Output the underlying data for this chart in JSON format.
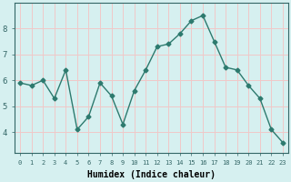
{
  "x": [
    0,
    1,
    2,
    3,
    4,
    5,
    6,
    7,
    8,
    9,
    10,
    11,
    12,
    13,
    14,
    15,
    16,
    17,
    18,
    19,
    20,
    21,
    22,
    23
  ],
  "y": [
    5.9,
    5.8,
    6.0,
    5.3,
    6.4,
    4.1,
    4.6,
    5.9,
    5.4,
    4.3,
    5.6,
    6.4,
    7.3,
    7.4,
    7.8,
    8.3,
    8.5,
    7.5,
    6.5,
    6.4,
    5.8,
    5.3,
    4.1,
    3.6
  ],
  "line_color": "#2d7a6e",
  "marker": "D",
  "marker_size": 2.5,
  "line_width": 1.0,
  "xlabel": "Humidex (Indice chaleur)",
  "xlabel_fontsize": 7,
  "bg_color": "#d6f0f0",
  "grid_color": "#f0c8c8",
  "tick_labels": [
    "0",
    "1",
    "2",
    "3",
    "4",
    "5",
    "6",
    "7",
    "8",
    "9",
    "10",
    "11",
    "12",
    "13",
    "14",
    "15",
    "16",
    "17",
    "18",
    "19",
    "20",
    "21",
    "22",
    "23"
  ],
  "yticks": [
    4,
    5,
    6,
    7,
    8
  ],
  "ylim": [
    3.2,
    9.0
  ],
  "xlim": [
    -0.5,
    23.5
  ]
}
